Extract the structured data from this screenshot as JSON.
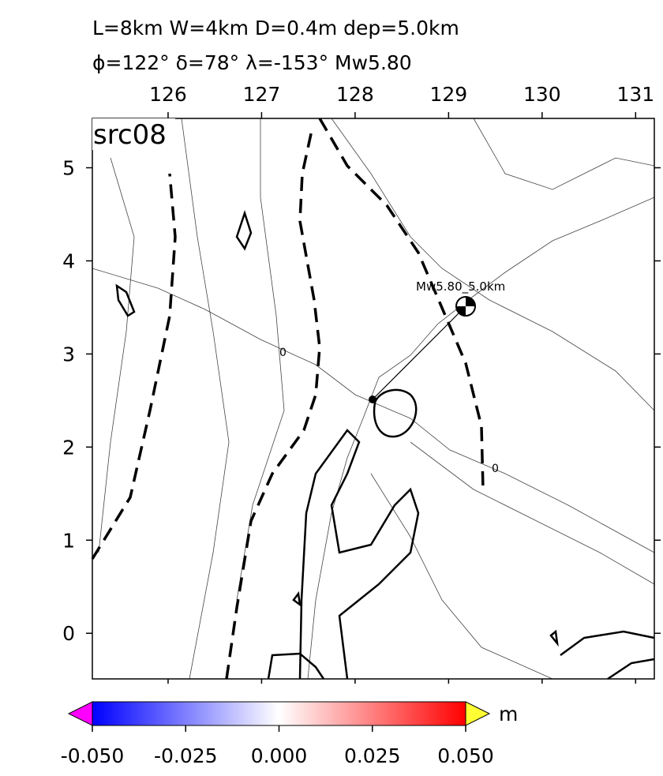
{
  "header": {
    "title": "L=8km W=4km D=0.4m dep=5.0km",
    "subtitle": "ϕ=122° δ=78° λ=-153° Mw5.80"
  },
  "map": {
    "label": "src08",
    "xlim": [
      125.19,
      131.2
    ],
    "ylim": [
      -0.49,
      5.53
    ],
    "xticks": [
      126,
      127,
      128,
      129,
      130,
      131
    ],
    "yticks": [
      0,
      1,
      2,
      3,
      4,
      5
    ],
    "annotations": [
      "0",
      "0",
      "Mw5.80_5.0km"
    ]
  },
  "colorbar": {
    "unit": "m",
    "lim": [
      -0.05,
      0.05
    ],
    "ticks": [
      {
        "value": -0.05,
        "label": "-0.050"
      },
      {
        "value": -0.025,
        "label": "-0.025"
      },
      {
        "value": 0,
        "label": "0.000"
      },
      {
        "value": 0.025,
        "label": "0.025"
      },
      {
        "value": 0.05,
        "label": "0.050"
      }
    ]
  }
}
